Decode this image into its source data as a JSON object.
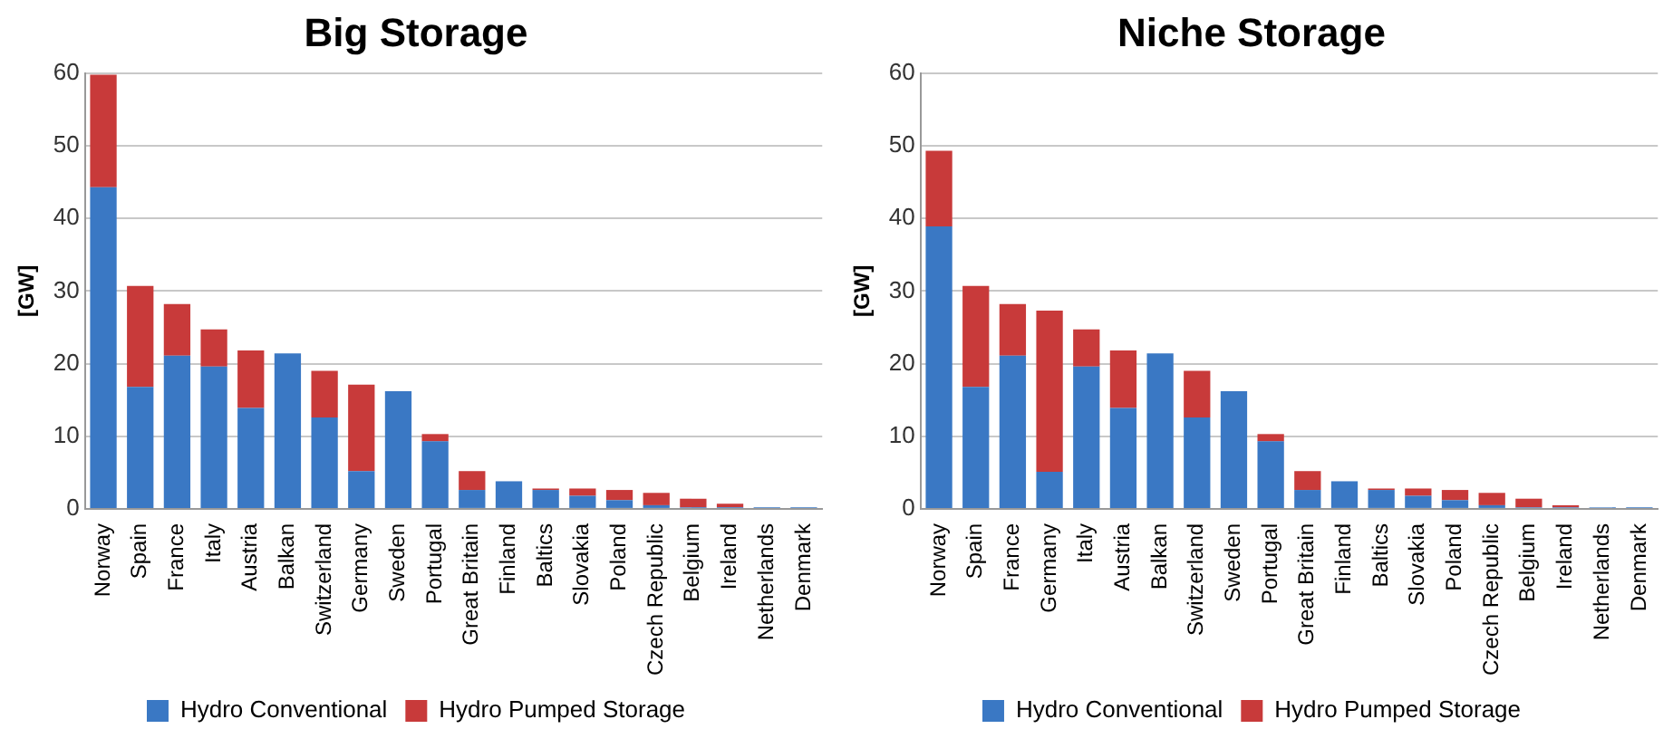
{
  "chart_data": [
    {
      "type": "bar",
      "title": "Big Storage",
      "ylabel": "[GW]",
      "stacked": true,
      "grid": "y",
      "legend": "bottom",
      "ylim": [
        0,
        60
      ],
      "yticks": [
        0,
        10,
        20,
        30,
        40,
        50,
        60
      ],
      "categories": [
        "Norway",
        "Spain",
        "France",
        "Italy",
        "Austria",
        "Balkan",
        "Switzerland",
        "Germany",
        "Sweden",
        "Portugal",
        "Great Britain",
        "Finland",
        "Baltics",
        "Slovakia",
        "Poland",
        "Czech Republic",
        "Belgium",
        "Ireland",
        "Netherlands",
        "Denmark"
      ],
      "series": [
        {
          "name": "Hydro Conventional",
          "color": "#3a78c4",
          "values": [
            44.3,
            16.8,
            21.1,
            19.6,
            13.9,
            21.4,
            12.6,
            5.2,
            16.2,
            9.3,
            2.6,
            3.8,
            2.6,
            1.8,
            1.2,
            0.5,
            0.2,
            0.2,
            0.2,
            0.2
          ]
        },
        {
          "name": "Hydro Pumped Storage",
          "color": "#c83a3a",
          "values": [
            15.5,
            13.9,
            7.1,
            5.1,
            7.9,
            0,
            6.4,
            11.9,
            0,
            1.0,
            2.6,
            0,
            0.2,
            1.0,
            1.4,
            1.7,
            1.2,
            0.5,
            0,
            0
          ]
        }
      ]
    },
    {
      "type": "bar",
      "title": "Niche Storage",
      "ylabel": "[GW]",
      "stacked": true,
      "grid": "y",
      "legend": "bottom",
      "ylim": [
        0,
        60
      ],
      "yticks": [
        0,
        10,
        20,
        30,
        40,
        50,
        60
      ],
      "categories": [
        "Norway",
        "Spain",
        "France",
        "Germany",
        "Italy",
        "Austria",
        "Balkan",
        "Switzerland",
        "Sweden",
        "Portugal",
        "Great Britain",
        "Finland",
        "Baltics",
        "Slovakia",
        "Poland",
        "Czech Republic",
        "Belgium",
        "Ireland",
        "Netherlands",
        "Denmark"
      ],
      "series": [
        {
          "name": "Hydro Conventional",
          "color": "#3a78c4",
          "values": [
            38.9,
            16.8,
            21.1,
            5.1,
            19.6,
            13.9,
            21.4,
            12.6,
            16.2,
            9.3,
            2.6,
            3.8,
            2.6,
            1.8,
            1.2,
            0.5,
            0.2,
            0.2,
            0.2,
            0.2
          ]
        },
        {
          "name": "Hydro Pumped Storage",
          "color": "#c83a3a",
          "values": [
            10.4,
            13.9,
            7.1,
            22.2,
            5.1,
            7.9,
            0,
            6.4,
            0,
            1.0,
            2.6,
            0,
            0.2,
            1.0,
            1.4,
            1.7,
            1.2,
            0.3,
            0,
            0
          ]
        }
      ]
    }
  ]
}
